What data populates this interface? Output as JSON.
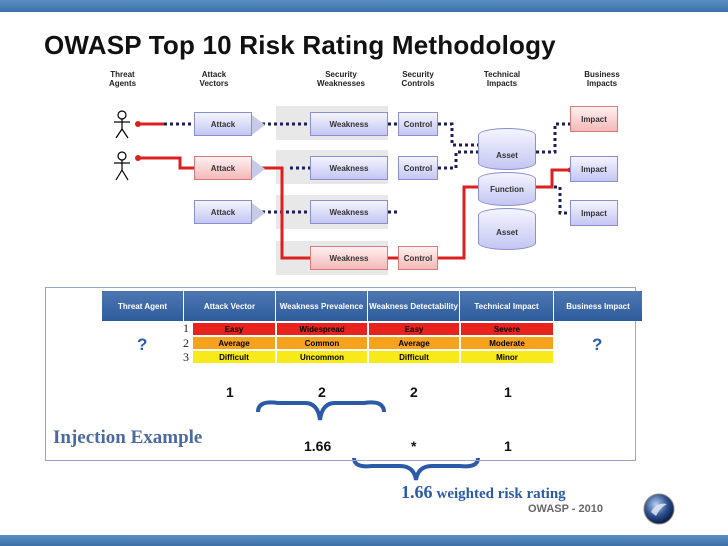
{
  "title": "OWASP Top 10 Risk Rating Methodology",
  "columns": {
    "threat_agents": "Threat Agents",
    "attack_vectors": "Attack Vectors",
    "security_weaknesses": "Security Weaknesses",
    "security_controls": "Security Controls",
    "technical_impacts": "Technical Impacts",
    "business_impacts": "Business Impacts"
  },
  "diagram": {
    "attack": "Attack",
    "weakness": "Weakness",
    "control": "Control",
    "asset": "Asset",
    "function": "Function",
    "impact": "Impact"
  },
  "table": {
    "headers": [
      "Threat Agent",
      "Attack Vector",
      "Weakness Prevalence",
      "Weakness Detectability",
      "Technical Impact",
      "Business Impact"
    ],
    "rank_labels": [
      "1",
      "2",
      "3"
    ],
    "rows": [
      [
        "Easy",
        "Widespread",
        "Easy",
        "Severe"
      ],
      [
        "Average",
        "Common",
        "Average",
        "Moderate"
      ],
      [
        "Difficult",
        "Uncommon",
        "Difficult",
        "Minor"
      ]
    ],
    "row_colors": [
      "#e8231e",
      "#f7a21c",
      "#f8ea1a"
    ],
    "unknown": "?"
  },
  "example": {
    "label": "Injection Example",
    "scores": [
      "1",
      "2",
      "2",
      "1"
    ],
    "avg": "1.66",
    "times": "*",
    "impact": "1",
    "result_value": "1.66",
    "result_text": "weighted risk rating"
  },
  "footer": "OWASP - 2010"
}
